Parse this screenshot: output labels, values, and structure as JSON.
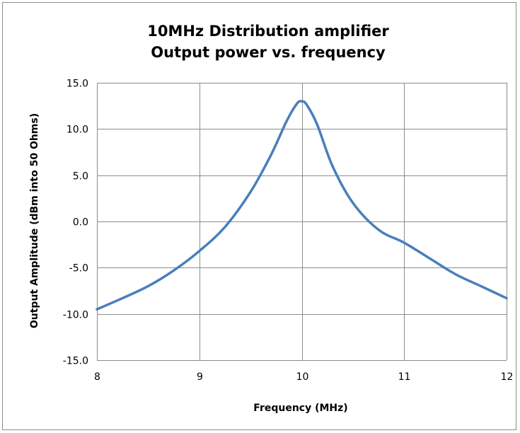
{
  "chart_data": {
    "type": "line",
    "title": "10MHz Distribution amplifier",
    "subtitle": "Output power vs. frequency",
    "xlabel": "Frequency (MHz)",
    "ylabel": "Output Amplitude (dBm into 50 Ohms)",
    "xlim": [
      8,
      12
    ],
    "ylim": [
      -15,
      15
    ],
    "xticks": [
      "8",
      "9",
      "10",
      "11",
      "12"
    ],
    "yticks": [
      "15.0",
      "10.0",
      "5.0",
      "0.0",
      "-5.0",
      "-10.0",
      "-15.0"
    ],
    "grid": true,
    "line_color": "#4a7ebb",
    "series": [
      {
        "x": [
          8.0,
          8.25,
          8.5,
          8.75,
          9.0,
          9.25,
          9.5,
          9.7,
          9.85,
          9.95,
          10.0,
          10.05,
          10.15,
          10.3,
          10.5,
          10.75,
          11.0,
          11.25,
          11.5,
          11.75,
          12.0
        ],
        "values": [
          -9.5,
          -8.3,
          -7.0,
          -5.3,
          -3.2,
          -0.6,
          3.2,
          7.2,
          10.8,
          12.7,
          13.0,
          12.6,
          10.5,
          6.0,
          2.0,
          -0.9,
          -2.3,
          -4.0,
          -5.7,
          -7.0,
          -8.3
        ]
      }
    ]
  }
}
